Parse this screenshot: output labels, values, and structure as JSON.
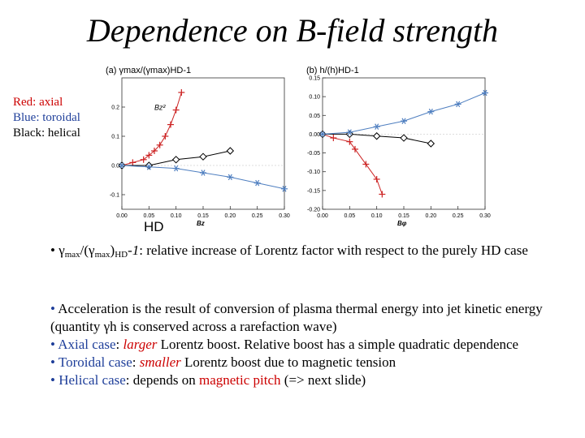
{
  "title": "Dependence on B-field strength",
  "legend": [
    {
      "label": "Red: axial",
      "color": "#cc0000"
    },
    {
      "label": "Blue: toroidal",
      "color": "#1f3f9a"
    },
    {
      "label": "Black: helical",
      "color": "#000000"
    }
  ],
  "hd_label": "HD",
  "chart_data": [
    {
      "type": "line",
      "panel_label": "(a) γmax/(γmax)HD-1",
      "xlabel": "Bz",
      "xlim": [
        0,
        0.3
      ],
      "ylim": [
        -0.15,
        0.3
      ],
      "xticks": [
        0.0,
        0.05,
        0.1,
        0.15,
        0.2,
        0.25,
        0.3
      ],
      "yticks": [
        -0.1,
        0.0,
        0.1,
        0.2
      ],
      "xtick_labels": [
        "0.00",
        "0.05",
        "0.10",
        "0.15",
        "0.20",
        "0.25",
        "0.30"
      ],
      "ytick_labels": [
        "-0.1",
        "0.0",
        "0.1",
        "0.2"
      ],
      "annotation": "Bz²",
      "series": [
        {
          "color": "#cc2222",
          "marker": "plus",
          "x": [
            0.0,
            0.02,
            0.04,
            0.05,
            0.06,
            0.07,
            0.08,
            0.09,
            0.1,
            0.11
          ],
          "y": [
            0.0,
            0.01,
            0.02,
            0.035,
            0.05,
            0.07,
            0.1,
            0.14,
            0.19,
            0.25
          ]
        },
        {
          "color": "#000000",
          "marker": "diamond",
          "x": [
            0.0,
            0.05,
            0.1,
            0.15,
            0.2
          ],
          "y": [
            0.0,
            0.0,
            0.02,
            0.03,
            0.05
          ]
        },
        {
          "color": "#4f7fc0",
          "marker": "star",
          "x": [
            0.0,
            0.05,
            0.1,
            0.15,
            0.2,
            0.25,
            0.3
          ],
          "y": [
            0.0,
            -0.005,
            -0.01,
            -0.025,
            -0.04,
            -0.06,
            -0.08
          ]
        }
      ]
    },
    {
      "type": "line",
      "panel_label": "(b) h/(h)HD-1",
      "xlabel": "Bφ",
      "xlim": [
        0,
        0.3
      ],
      "ylim": [
        -0.2,
        0.15
      ],
      "xticks": [
        0.0,
        0.05,
        0.1,
        0.15,
        0.2,
        0.25,
        0.3
      ],
      "yticks": [
        -0.2,
        -0.15,
        -0.1,
        -0.05,
        0.0,
        0.05,
        0.1,
        0.15
      ],
      "xtick_labels": [
        "0.00",
        "0.05",
        "0.10",
        "0.15",
        "0.20",
        "0.25",
        "0.30"
      ],
      "ytick_labels": [
        "-0.20",
        "-0.15",
        "-0.10",
        "-0.05",
        "0.00",
        "0.05",
        "0.10",
        "0.15"
      ],
      "series": [
        {
          "color": "#cc2222",
          "marker": "plus",
          "x": [
            0.0,
            0.02,
            0.05,
            0.06,
            0.08,
            0.1,
            0.11
          ],
          "y": [
            0.0,
            -0.01,
            -0.02,
            -0.04,
            -0.08,
            -0.12,
            -0.16
          ]
        },
        {
          "color": "#000000",
          "marker": "diamond",
          "x": [
            0.0,
            0.05,
            0.1,
            0.15,
            0.2
          ],
          "y": [
            0.0,
            0.0,
            -0.005,
            -0.01,
            -0.025
          ]
        },
        {
          "color": "#4f7fc0",
          "marker": "star",
          "x": [
            0.0,
            0.05,
            0.1,
            0.15,
            0.2,
            0.25,
            0.3
          ],
          "y": [
            0.0,
            0.005,
            0.02,
            0.035,
            0.06,
            0.08,
            0.11
          ]
        }
      ]
    }
  ],
  "text": {
    "b1_bullet": "•",
    "b1_gamma": "γ",
    "b1_max": "max",
    "b1_mid": "/(γ",
    "b1_max2": "max",
    "b1_close": ")",
    "b1_hd": "HD",
    "b1_minus": "-",
    "b1_one": "1",
    "b1_rest": ": relative increase of Lorentz factor with respect to the purely HD case",
    "b2_bullet": "•",
    "b2_text": "Acceleration is the result of conversion of plasma thermal energy into jet kinetic energy (quantity γh is conserved across a rarefaction wave)",
    "b3_bullet": "•",
    "b3_name": "Axial case",
    "b3_colon": ": ",
    "b3_larger": "larger",
    "b3_rest": " Lorentz boost. Relative boost has a simple quadratic dependence",
    "b4_bullet": "•",
    "b4_name": "Toroidal case",
    "b4_colon": ": ",
    "b4_smaller": "smaller",
    "b4_rest": " Lorentz boost due to magnetic tension",
    "b5_bullet": "•",
    "b5_name": "Helical case",
    "b5_mid": ": depends on ",
    "b5_pitch": "magnetic pitch",
    "b5_rest": " (=> next slide)"
  }
}
